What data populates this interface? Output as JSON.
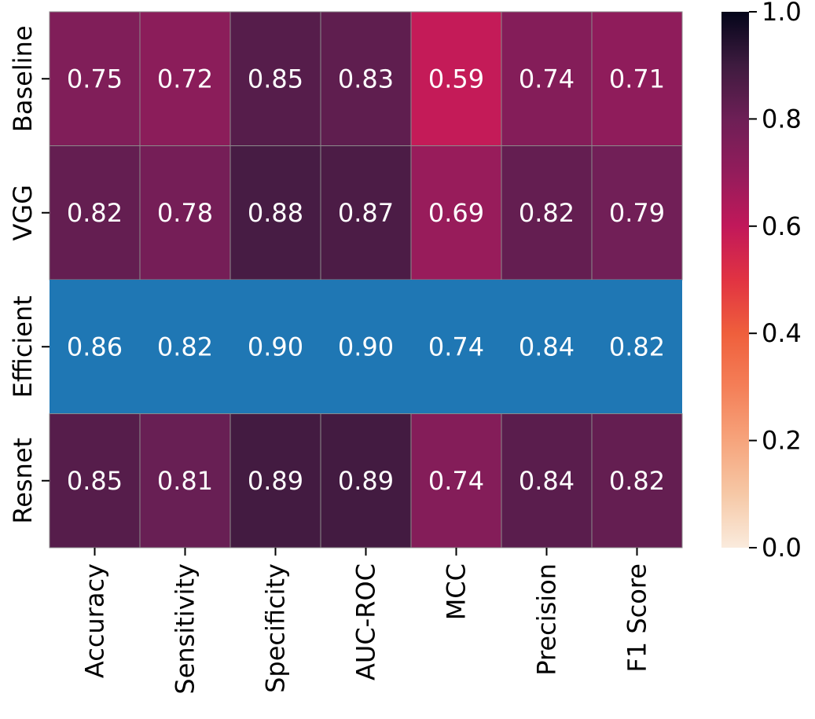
{
  "chart_data": {
    "type": "heatmap",
    "columns": [
      "Accuracy",
      "Sensitivity",
      "Specificity",
      "AUC-ROC",
      "MCC",
      "Precision",
      "F1 Score"
    ],
    "rows": [
      "Baseline",
      "VGG",
      "Efficient",
      "Resnet"
    ],
    "values": [
      [
        0.75,
        0.72,
        0.85,
        0.83,
        0.59,
        0.74,
        0.71
      ],
      [
        0.82,
        0.78,
        0.88,
        0.87,
        0.69,
        0.82,
        0.79
      ],
      [
        0.86,
        0.82,
        0.9,
        0.9,
        0.74,
        0.84,
        0.82
      ],
      [
        0.85,
        0.81,
        0.89,
        0.89,
        0.74,
        0.84,
        0.82
      ]
    ],
    "value_labels": [
      [
        "0.75",
        "0.72",
        "0.85",
        "0.83",
        "0.59",
        "0.74",
        "0.71"
      ],
      [
        "0.82",
        "0.78",
        "0.88",
        "0.87",
        "0.69",
        "0.82",
        "0.79"
      ],
      [
        "0.86",
        "0.82",
        "0.90",
        "0.90",
        "0.74",
        "0.84",
        "0.82"
      ],
      [
        "0.85",
        "0.81",
        "0.89",
        "0.89",
        "0.74",
        "0.84",
        "0.82"
      ]
    ],
    "highlighted_row": "Efficient",
    "highlight_color": "#1f77b4",
    "colormap": "rocket_r",
    "colorbar": {
      "vmin": 0.0,
      "vmax": 1.0,
      "ticks": [
        "0.0",
        "0.2",
        "0.4",
        "0.6",
        "0.8",
        "1.0"
      ],
      "tick_values": [
        0.0,
        0.2,
        0.4,
        0.6,
        0.8,
        1.0
      ]
    },
    "colormap_stops": [
      [
        0.0,
        "#faebdd"
      ],
      [
        0.1,
        "#f6c8a6"
      ],
      [
        0.2,
        "#f6a47c"
      ],
      [
        0.3,
        "#f47f58"
      ],
      [
        0.4,
        "#ef5f3c"
      ],
      [
        0.5,
        "#e13342"
      ],
      [
        0.6,
        "#c1185a"
      ],
      [
        0.7,
        "#931c5b"
      ],
      [
        0.8,
        "#6d1f56"
      ],
      [
        0.9,
        "#3e1b3f"
      ],
      [
        1.0,
        "#03051a"
      ]
    ],
    "title": "",
    "xlabel": "",
    "ylabel": ""
  }
}
